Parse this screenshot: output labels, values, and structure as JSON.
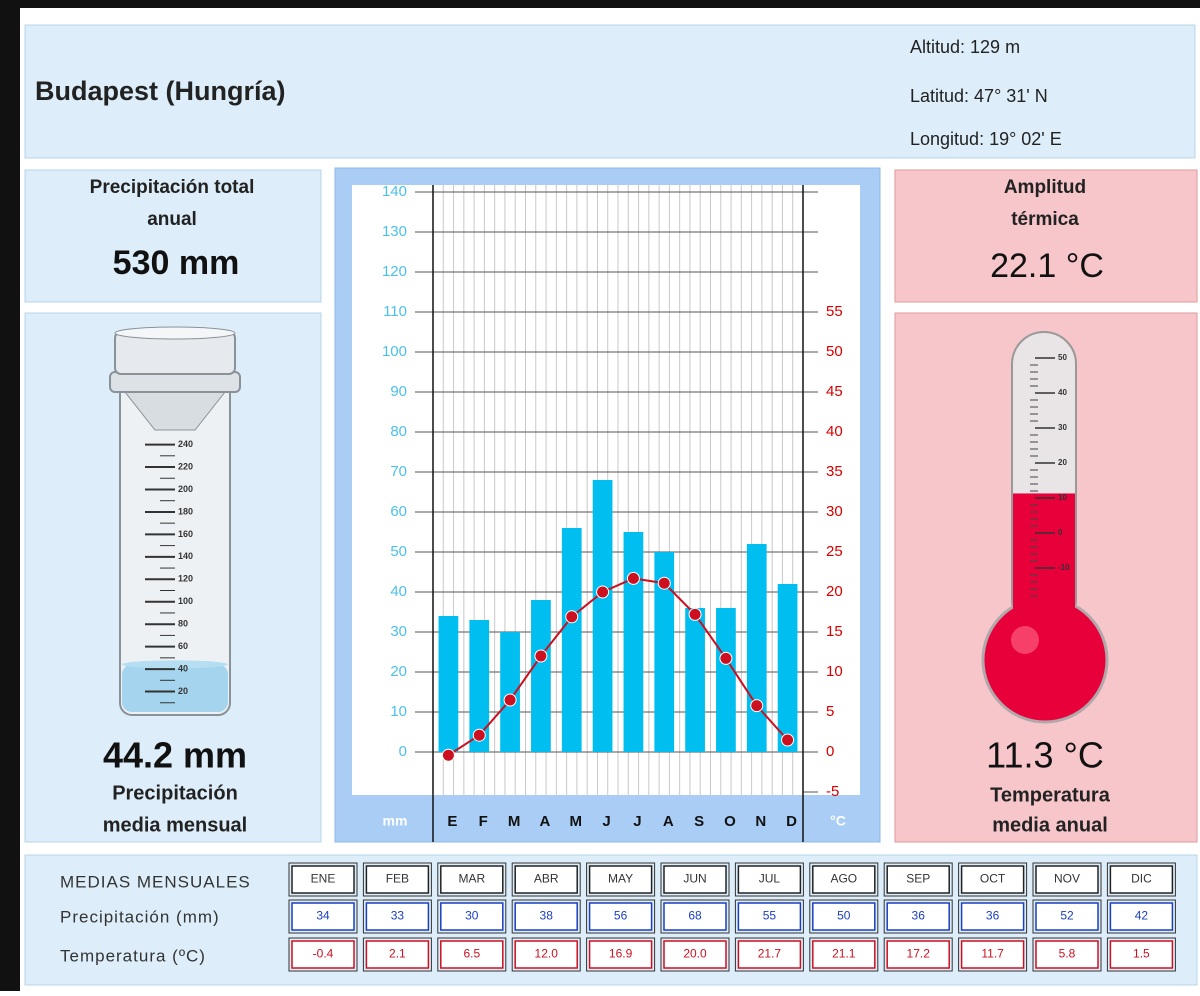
{
  "header": {
    "title": "Budapest (Hungría)",
    "info": [
      "Altitud: 129 m",
      "Latitud: 47° 31' N",
      "Longitud:  19° 02' E"
    ]
  },
  "annual_precipitation": {
    "label": [
      "Precipitación total",
      "anual"
    ],
    "value": "530 mm"
  },
  "rain_gauge": {
    "ticks": [
      20,
      40,
      60,
      80,
      100,
      120,
      140,
      160,
      180,
      200,
      220,
      240
    ],
    "level": 44.2,
    "value_label": "44.2 mm",
    "label": [
      "Precipitación",
      "media mensual"
    ]
  },
  "thermal_amplitude": {
    "label": [
      "Amplitud",
      "térmica"
    ],
    "value": "22.1 °C"
  },
  "thermometer": {
    "ticks": [
      50,
      40,
      30,
      20,
      10,
      0,
      -10
    ],
    "level": 11.3,
    "value_label": "11.3 °C",
    "label": [
      "Temperatura",
      "media anual"
    ]
  },
  "chart_data": {
    "type": "bar",
    "categories": [
      "E",
      "F",
      "M",
      "A",
      "M",
      "J",
      "J",
      "A",
      "S",
      "O",
      "N",
      "D"
    ],
    "y_label": "mm",
    "y2_label": "°C",
    "ylim": [
      -10,
      140
    ],
    "yticks": [
      0,
      10,
      20,
      30,
      40,
      50,
      60,
      70,
      80,
      90,
      100,
      110,
      120,
      130,
      140
    ],
    "y2lim": [
      -5,
      70
    ],
    "y2ticks": [
      -5,
      0,
      5,
      10,
      15,
      20,
      25,
      30,
      35,
      40,
      45,
      50,
      55
    ],
    "grid": true,
    "series": [
      {
        "name": "Precipitación (mm)",
        "kind": "bar",
        "color": "#00bff0",
        "values": [
          34,
          33,
          30,
          38,
          56,
          68,
          55,
          50,
          36,
          36,
          52,
          42
        ]
      },
      {
        "name": "Temperatura (ºC)",
        "kind": "line",
        "axis": "y2",
        "color": "#cc1020",
        "values": [
          -0.4,
          2.1,
          6.5,
          12.0,
          16.9,
          20.0,
          21.7,
          21.1,
          17.2,
          11.7,
          5.8,
          1.5
        ],
        "value_labels": [
          "-0.4",
          "2.1",
          "6.5",
          "12.0",
          "16.9",
          "20.0",
          "21.7",
          "21.1",
          "17.2",
          "11.7",
          "5.8",
          "1.5"
        ]
      }
    ]
  },
  "table": {
    "title": "MEDIAS MENSUALES",
    "months": [
      "ENE",
      "FEB",
      "MAR",
      "ABR",
      "MAY",
      "JUN",
      "JUL",
      "AGO",
      "SEP",
      "OCT",
      "NOV",
      "DIC"
    ]
  }
}
